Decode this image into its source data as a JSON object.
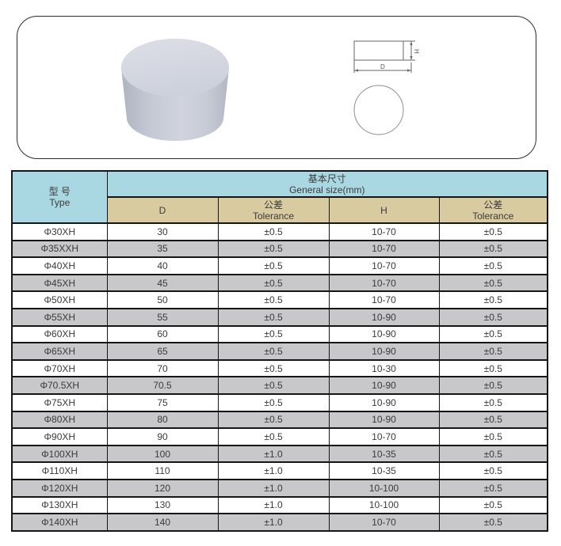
{
  "top_panel": {
    "product_image_icon": "gray-cylinder-3d-icon",
    "drawing_labels": {
      "height": "H",
      "diameter": "D"
    }
  },
  "table": {
    "header": {
      "type_cn": "型 号",
      "type_en": "Type",
      "size_cn": "基本尺寸",
      "size_en": "General size(mm)",
      "col_d": "D",
      "tolerance_cn": "公差",
      "tolerance_en": "Tolerance",
      "col_h": "H"
    },
    "columns": [
      "Type",
      "D",
      "D Tolerance",
      "H",
      "H Tolerance"
    ],
    "rows": [
      [
        "Φ30XH",
        "30",
        "±0.5",
        "10-70",
        "±0.5"
      ],
      [
        "Φ35XXH",
        "35",
        "±0.5",
        "10-70",
        "±0.5"
      ],
      [
        "Φ40XH",
        "40",
        "±0.5",
        "10-70",
        "±0.5"
      ],
      [
        "Φ45XH",
        "45",
        "±0.5",
        "10-70",
        "±0.5"
      ],
      [
        "Φ50XH",
        "50",
        "±0.5",
        "10-70",
        "±0.5"
      ],
      [
        "Φ55XH",
        "55",
        "±0.5",
        "10-90",
        "±0.5"
      ],
      [
        "Φ60XH",
        "60",
        "±0.5",
        "10-90",
        "±0.5"
      ],
      [
        "Φ65XH",
        "65",
        "±0.5",
        "10-90",
        "±0.5"
      ],
      [
        "Φ70XH",
        "70",
        "±0.5",
        "10-30",
        "±0.5"
      ],
      [
        "Φ70.5XH",
        "70.5",
        "±0.5",
        "10-90",
        "±0.5"
      ],
      [
        "Φ75XH",
        "75",
        "±0.5",
        "10-90",
        "±0.5"
      ],
      [
        "Φ80XH",
        "80",
        "±0.5",
        "10-90",
        "±0.5"
      ],
      [
        "Φ90XH",
        "90",
        "±0.5",
        "10-70",
        "±0.5"
      ],
      [
        "Φ100XH",
        "100",
        "±1.0",
        "10-35",
        "±0.5"
      ],
      [
        "Φ110XH",
        "110",
        "±1.0",
        "10-35",
        "±0.5"
      ],
      [
        "Φ120XH",
        "120",
        "±1.0",
        "10-100",
        "±0.5"
      ],
      [
        "Φ130XH",
        "130",
        "±1.0",
        "10-100",
        "±0.5"
      ],
      [
        "Φ140XH",
        "140",
        "±1.0",
        "10-70",
        "±0.5"
      ]
    ]
  },
  "colors": {
    "header_cyan": "#a9d8e3",
    "header_tan": "#d9cba0",
    "row_gray": "#c8c8cb",
    "row_white": "#ffffff",
    "border": "#161616",
    "text": "#3a3a3a"
  }
}
